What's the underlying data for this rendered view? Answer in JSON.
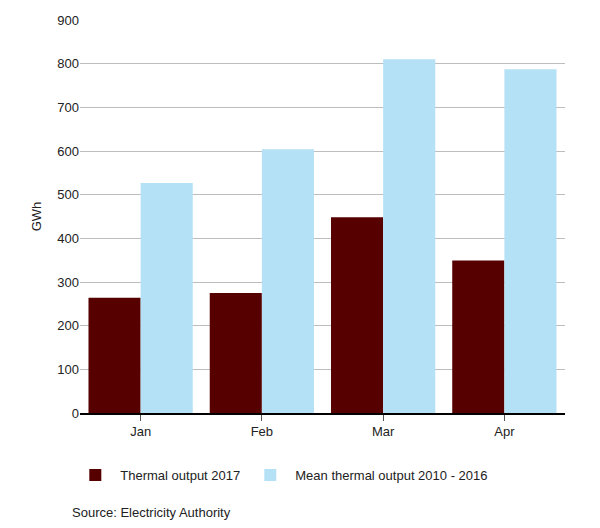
{
  "chart_data": {
    "type": "bar",
    "y_label": "GWh",
    "categories": [
      "Jan",
      "Feb",
      "Mar",
      "Apr"
    ],
    "series": [
      {
        "name": "Thermal output 2017",
        "color": "#560000",
        "values": [
          264,
          275,
          448,
          349
        ]
      },
      {
        "name": "Mean thermal output 2010 - 2016",
        "color": "#b5e1f6",
        "values": [
          527,
          604,
          810,
          787
        ]
      }
    ],
    "ylim": [
      0,
      900
    ],
    "yticks": [
      0,
      100,
      200,
      300,
      400,
      500,
      600,
      700,
      800,
      900
    ],
    "grid": true,
    "legend": "bottom",
    "source": "Source: Electricity Authority"
  }
}
